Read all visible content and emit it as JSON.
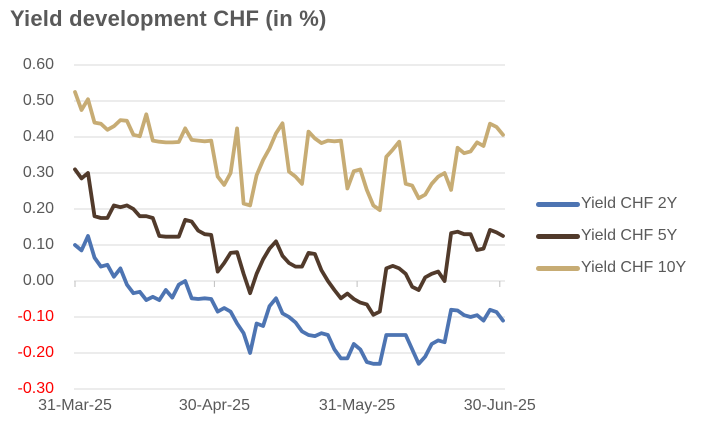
{
  "title": "Yield development CHF (in %)",
  "chart_data": {
    "type": "line",
    "title": "Yield development CHF (in %)",
    "xlabel": "",
    "ylabel": "",
    "ylim": [
      -0.3,
      0.6
    ],
    "y_tick_step": 0.1,
    "grid": "horizontal",
    "legend_position": "right",
    "x_tick_labels": [
      "31-Mar-25",
      "30-Apr-25",
      "31-May-25",
      "30-Jun-25"
    ],
    "y_tick_labels": [
      "0.60",
      "0.50",
      "0.40",
      "0.30",
      "0.20",
      "0.10",
      "0.00",
      "-0.10",
      "-0.20",
      "-0.30"
    ],
    "colors": {
      "axis_text": "#595959",
      "negative_axis_text": "#ff0000",
      "gridline": "#d9d9d9",
      "tick": "#bfbfbf",
      "title_text": "#595959"
    },
    "series": [
      {
        "name": "Yield CHF 2Y",
        "color": "#4d74b2",
        "values": [
          0.1,
          0.085,
          0.125,
          0.065,
          0.04,
          0.045,
          0.012,
          0.035,
          -0.01,
          -0.034,
          -0.03,
          -0.053,
          -0.044,
          -0.053,
          -0.025,
          -0.046,
          -0.01,
          0.0,
          -0.048,
          -0.05,
          -0.048,
          -0.05,
          -0.085,
          -0.075,
          -0.085,
          -0.118,
          -0.145,
          -0.2,
          -0.118,
          -0.125,
          -0.07,
          -0.048,
          -0.09,
          -0.1,
          -0.115,
          -0.14,
          -0.15,
          -0.153,
          -0.145,
          -0.15,
          -0.19,
          -0.215,
          -0.215,
          -0.175,
          -0.19,
          -0.225,
          -0.23,
          -0.23,
          -0.15,
          -0.15,
          -0.15,
          -0.15,
          -0.19,
          -0.23,
          -0.21,
          -0.175,
          -0.165,
          -0.17,
          -0.08,
          -0.082,
          -0.095,
          -0.1,
          -0.095,
          -0.11,
          -0.08,
          -0.086,
          -0.11
        ]
      },
      {
        "name": "Yield CHF 5Y",
        "color": "#513a2b",
        "values": [
          0.31,
          0.285,
          0.3,
          0.18,
          0.175,
          0.175,
          0.21,
          0.205,
          0.21,
          0.2,
          0.18,
          0.18,
          0.175,
          0.125,
          0.123,
          0.123,
          0.123,
          0.17,
          0.165,
          0.14,
          0.13,
          0.128,
          0.026,
          0.05,
          0.078,
          0.08,
          0.02,
          -0.034,
          0.02,
          0.06,
          0.09,
          0.11,
          0.07,
          0.05,
          0.04,
          0.04,
          0.078,
          0.075,
          0.03,
          0.0,
          -0.025,
          -0.048,
          -0.035,
          -0.05,
          -0.06,
          -0.065,
          -0.094,
          -0.085,
          0.035,
          0.042,
          0.035,
          0.02,
          -0.016,
          -0.025,
          0.01,
          0.02,
          0.026,
          0.0,
          0.133,
          0.137,
          0.13,
          0.13,
          0.086,
          0.09,
          0.142,
          0.135,
          0.125
        ]
      },
      {
        "name": "Yield CHF 10Y",
        "color": "#c7ac74",
        "values": [
          0.525,
          0.475,
          0.505,
          0.44,
          0.437,
          0.42,
          0.43,
          0.447,
          0.445,
          0.406,
          0.402,
          0.463,
          0.39,
          0.387,
          0.385,
          0.385,
          0.386,
          0.424,
          0.392,
          0.39,
          0.388,
          0.39,
          0.29,
          0.267,
          0.3,
          0.424,
          0.215,
          0.21,
          0.294,
          0.336,
          0.368,
          0.41,
          0.438,
          0.304,
          0.29,
          0.27,
          0.415,
          0.396,
          0.383,
          0.39,
          0.388,
          0.39,
          0.257,
          0.305,
          0.31,
          0.253,
          0.21,
          0.197,
          0.345,
          0.365,
          0.387,
          0.27,
          0.265,
          0.23,
          0.24,
          0.27,
          0.29,
          0.3,
          0.253,
          0.37,
          0.355,
          0.36,
          0.385,
          0.375,
          0.437,
          0.428,
          0.406
        ]
      }
    ]
  }
}
